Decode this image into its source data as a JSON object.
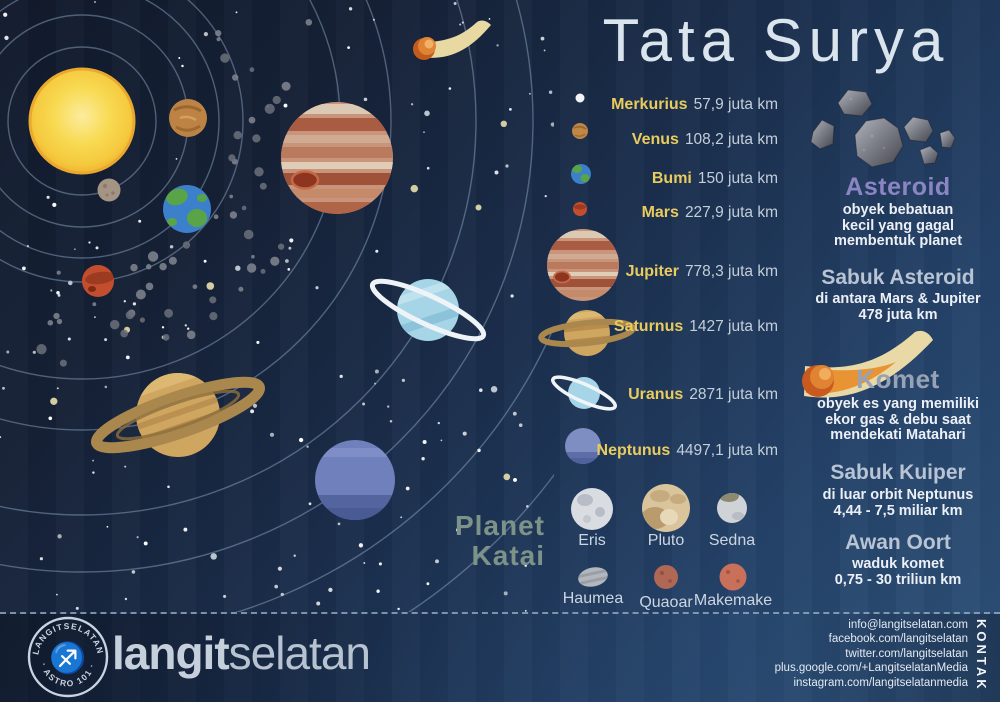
{
  "title": "Tata Surya",
  "planet_list": {
    "rows": [
      {
        "name": "Merkurius",
        "value": "57,9 juta km"
      },
      {
        "name": "Venus",
        "value": "108,2 juta km"
      },
      {
        "name": "Bumi",
        "value": "150 juta km"
      },
      {
        "name": "Mars",
        "value": "227,9 juta km"
      },
      {
        "name": "Jupiter",
        "value": "778,3 juta km"
      },
      {
        "name": "Saturnus",
        "value": "1427 juta km"
      },
      {
        "name": "Uranus",
        "value": "2871 juta km"
      },
      {
        "name": "Neptunus",
        "value": "4497,1 juta km"
      }
    ]
  },
  "dwarf": {
    "title_line1": "Planet",
    "title_line2": "Katai",
    "items": [
      {
        "label": "Eris"
      },
      {
        "label": "Pluto"
      },
      {
        "label": "Sedna"
      },
      {
        "label": "Haumea"
      },
      {
        "label": "Quaoar"
      },
      {
        "label": "Makemake"
      }
    ]
  },
  "info": {
    "asteroid": {
      "title": "Asteroid",
      "lines": [
        "obyek bebatuan",
        "kecil yang gagal",
        "membentuk planet"
      ]
    },
    "sabuk_asteroid": {
      "title": "Sabuk Asteroid",
      "lines": [
        "di antara Mars & Jupiter",
        "478 juta km"
      ]
    },
    "komet": {
      "title": "Komet",
      "lines": [
        "obyek es yang memiliki",
        "ekor gas & debu saat",
        "mendekati Matahari"
      ]
    },
    "sabuk_kuiper": {
      "title": "Sabuk Kuiper",
      "lines": [
        "di luar orbit Neptunus",
        "4,44 - 7,5 miliar km"
      ]
    },
    "awan_oort": {
      "title": "Awan Oort",
      "lines": [
        "waduk komet",
        "0,75 - 30 triliun km"
      ]
    }
  },
  "footer": {
    "stamp_top": "LANGITSELATAN",
    "stamp_bottom": "· ASTRO 101 ·",
    "stamp_symbol": "♐",
    "brand_bold": "langit",
    "brand_light": "selatan",
    "kontak_label": "KONTAK",
    "contacts": [
      "info@langitselatan.com",
      "facebook.com/langitselatan",
      "twitter.com/langitselatan",
      "plus.google.com/+LangitselatanMedia",
      "instagram.com/langitselatanmedia"
    ]
  },
  "colors": {
    "accent_yellow": "#e9cb5e",
    "purple_heading": "#8b85c3",
    "gray_heading": "#97a2b4",
    "sub_heading": "#b8c3d3",
    "katai_green": "#7d9289",
    "value_text": "#c3ceda",
    "bg_dark": "#111a2c",
    "bg_light": "#2e5178"
  }
}
